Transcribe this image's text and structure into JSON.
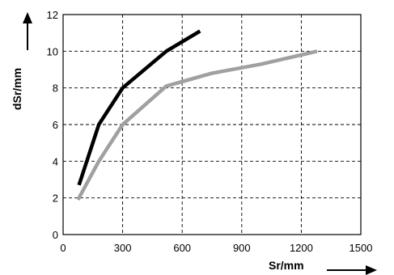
{
  "chart_data": {
    "type": "line",
    "title": "",
    "xlabel": "Sr/mm",
    "ylabel": "dSr/mm",
    "xlim": [
      0,
      1500
    ],
    "ylim": [
      0,
      12
    ],
    "x_ticks": [
      0,
      300,
      600,
      900,
      1200,
      1500
    ],
    "y_ticks": [
      0,
      2,
      4,
      6,
      8,
      10,
      12
    ],
    "x_tick_labels": [
      "0",
      "300",
      "600",
      "900",
      "1200",
      "1500"
    ],
    "y_tick_labels": [
      "0",
      "2",
      "4",
      "6",
      "8",
      "10",
      "12"
    ],
    "grid": true,
    "series": [
      {
        "color": "#000000",
        "points": [
          [
            80,
            2.7
          ],
          [
            180,
            6
          ],
          [
            300,
            8
          ],
          [
            520,
            10
          ],
          [
            690,
            11.1
          ]
        ]
      },
      {
        "color": "#a0a0a0",
        "points": [
          [
            75,
            1.9
          ],
          [
            180,
            4
          ],
          [
            300,
            6
          ],
          [
            520,
            8.1
          ],
          [
            750,
            8.8
          ],
          [
            1000,
            9.3
          ],
          [
            1280,
            10
          ]
        ]
      }
    ]
  }
}
